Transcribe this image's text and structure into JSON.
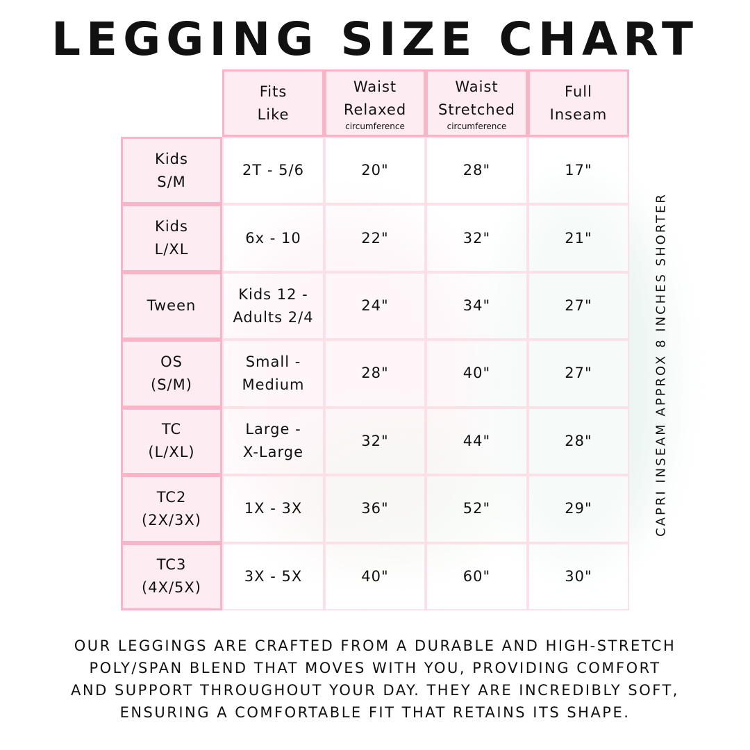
{
  "title": "LEGGING SIZE CHART",
  "colors": {
    "header_bg": "#fdecf2",
    "header_border": "#f7b5c7",
    "cell_border": "#fbe0e8"
  },
  "table": {
    "headers": [
      {
        "line1": "Fits",
        "line2": "Like",
        "sub": ""
      },
      {
        "line1": "Waist",
        "line2": "Relaxed",
        "sub": "circumference"
      },
      {
        "line1": "Waist",
        "line2": "Stretched",
        "sub": "circumference"
      },
      {
        "line1": "Full",
        "line2": "Inseam",
        "sub": ""
      }
    ],
    "rows": [
      {
        "size1": "Kids",
        "size2": "S/M",
        "fits1": "2T - 5/6",
        "fits2": "",
        "relaxed": "20\"",
        "stretched": "28\"",
        "inseam": "17\""
      },
      {
        "size1": "Kids",
        "size2": "L/XL",
        "fits1": "6x - 10",
        "fits2": "",
        "relaxed": "22\"",
        "stretched": "32\"",
        "inseam": "21\""
      },
      {
        "size1": "Tween",
        "size2": "",
        "fits1": "Kids 12 -",
        "fits2": "Adults 2/4",
        "relaxed": "24\"",
        "stretched": "34\"",
        "inseam": "27\""
      },
      {
        "size1": "OS",
        "size2": "(S/M)",
        "fits1": "Small -",
        "fits2": "Medium",
        "relaxed": "28\"",
        "stretched": "40\"",
        "inseam": "27\""
      },
      {
        "size1": "TC",
        "size2": "(L/XL)",
        "fits1": "Large -",
        "fits2": "X-Large",
        "relaxed": "32\"",
        "stretched": "44\"",
        "inseam": "28\""
      },
      {
        "size1": "TC2",
        "size2": "(2X/3X)",
        "fits1": "1X - 3X",
        "fits2": "",
        "relaxed": "36\"",
        "stretched": "52\"",
        "inseam": "29\""
      },
      {
        "size1": "TC3",
        "size2": "(4X/5X)",
        "fits1": "3X - 5X",
        "fits2": "",
        "relaxed": "40\"",
        "stretched": "60\"",
        "inseam": "30\""
      }
    ]
  },
  "side_note": "CAPRI INSEAM APPROX 8 INCHES SHORTER",
  "footer": [
    "Our leggings are crafted from a durable and high-stretch",
    "poly/span blend that moves with you, providing comfort",
    "and support throughout your day. They are incredibly soft,",
    "ensuring a comfortable fit that retains its shape."
  ]
}
